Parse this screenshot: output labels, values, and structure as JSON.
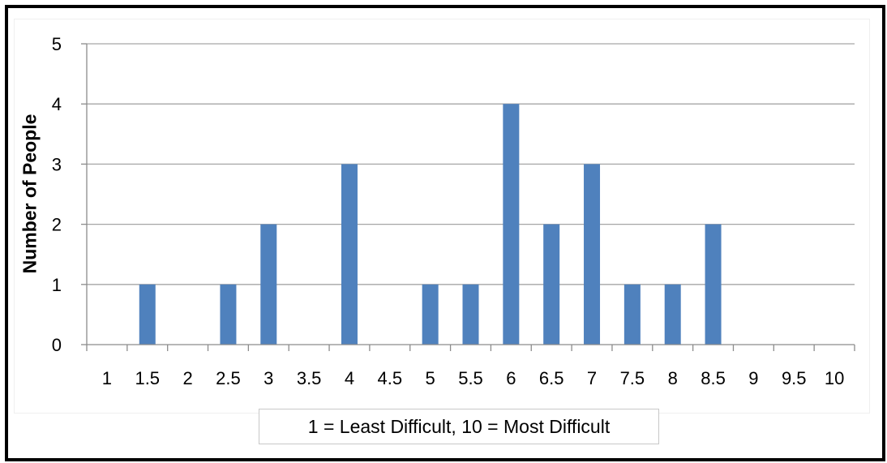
{
  "chart_data": {
    "type": "bar",
    "title": "",
    "xlabel": "1 = Least Difficult, 10 = Most Difficult",
    "ylabel": "Number of People",
    "categories": [
      "1",
      "1.5",
      "2",
      "2.5",
      "3",
      "3.5",
      "4",
      "4.5",
      "5",
      "5.5",
      "6",
      "6.5",
      "7",
      "7.5",
      "8",
      "8.5",
      "9",
      "9.5",
      "10"
    ],
    "values": [
      0,
      1,
      0,
      1,
      2,
      0,
      3,
      0,
      1,
      1,
      4,
      2,
      3,
      1,
      1,
      2,
      0,
      0,
      0
    ],
    "ylim": [
      0,
      5
    ],
    "yticks": [
      "0",
      "1",
      "2",
      "3",
      "4",
      "5"
    ],
    "grid": true,
    "legend": "none",
    "bar_color": "#4f81bd",
    "grid_color": "#a6a6a6"
  }
}
